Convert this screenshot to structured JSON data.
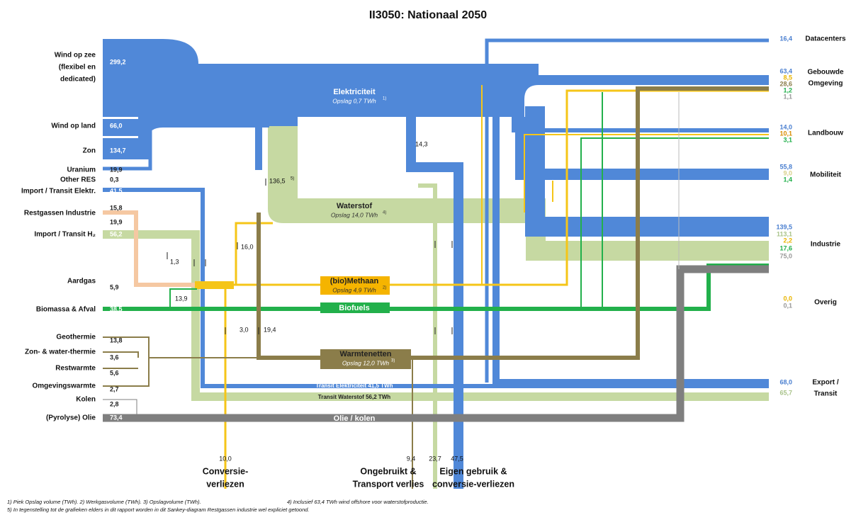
{
  "title": "II3050: Nationaal 2050",
  "sources": [
    {
      "label": [
        "Wind op zee",
        "(flexibel en",
        "dedicated)"
      ],
      "values": [
        "299,2"
      ]
    },
    {
      "label": [
        "Wind op land"
      ],
      "values": [
        "66,0"
      ]
    },
    {
      "label": [
        "Zon"
      ],
      "values": [
        "134,7"
      ]
    },
    {
      "label": [
        "Uranium"
      ],
      "values": [
        "19,9"
      ]
    },
    {
      "label": [
        "Other RES"
      ],
      "values": [
        "0,3"
      ]
    },
    {
      "label": [
        "Import / Transit Elektr."
      ],
      "values": [
        "41,5"
      ]
    },
    {
      "label": [
        "Restgassen Industrie"
      ],
      "values": [
        "15,8",
        "19,9"
      ]
    },
    {
      "label": [
        "Import / Transit H₂"
      ],
      "values": [
        "56,2"
      ]
    },
    {
      "label": [
        "Aardgas"
      ],
      "values": [
        "5,9"
      ]
    },
    {
      "label": [
        "Biomassa & Afval"
      ],
      "values": [
        "38,5"
      ]
    },
    {
      "label": [
        "Geothermie"
      ],
      "values": [
        "13,8"
      ]
    },
    {
      "label": [
        "Zon- & water-thermie"
      ],
      "values": [
        "3,6"
      ]
    },
    {
      "label": [
        "Restwarmte"
      ],
      "values": [
        "5,6"
      ]
    },
    {
      "label": [
        "Omgevingswarmte"
      ],
      "values": [
        "2,7"
      ]
    },
    {
      "label": [
        "Kolen"
      ],
      "values": [
        "2,8"
      ]
    },
    {
      "label": [
        "(Pyrolyse) Olie"
      ],
      "values": [
        "73,4"
      ]
    }
  ],
  "carriers": [
    {
      "name": "Elektriciteit",
      "storage": "Opslag 0,7 TWh",
      "note": "1)"
    },
    {
      "name": "Waterstof",
      "storage": "Opslag 14,0 TWh",
      "note": "4)"
    },
    {
      "name": "(bio)Methaan",
      "storage": "Opslag 4,9 TWh",
      "note": "2)"
    },
    {
      "name": "Biofuels"
    },
    {
      "name": "Warmtenetten",
      "storage": "Opslag 12,0 TWh",
      "note": "3)"
    },
    {
      "name": "Transit Elektriciteit 41,5 TWh"
    },
    {
      "name": "Transit Waterstof 56,2 TWh"
    },
    {
      "name": "Olie / kolen"
    }
  ],
  "flow_labels": [
    "14,3",
    "136,5",
    "5)",
    "16,0",
    "1,3",
    "13,9",
    "3,0",
    "19,4"
  ],
  "destinations": [
    {
      "label": [
        "Datacenters"
      ],
      "values": [
        "16,4"
      ]
    },
    {
      "label": [
        "Gebouwde",
        "Omgeving"
      ],
      "values": [
        "63,4",
        "8,5",
        "28,6",
        "1,2",
        "1,1"
      ]
    },
    {
      "label": [
        "Landbouw"
      ],
      "values": [
        "14,0",
        "10,1",
        "3,1"
      ]
    },
    {
      "label": [
        "Mobiliteit"
      ],
      "values": [
        "55,8",
        "9,0",
        "1,4"
      ]
    },
    {
      "label": [
        "Industrie"
      ],
      "values": [
        "139,5",
        "113,1",
        "2,2",
        "17,6",
        "75,0"
      ]
    },
    {
      "label": [
        "Overig"
      ],
      "values": [
        "0,0",
        "0,1"
      ]
    },
    {
      "label": [
        "Export /",
        "Transit"
      ],
      "values": [
        "68,0",
        "65,7"
      ]
    }
  ],
  "losses": [
    {
      "values": [
        "10,0"
      ],
      "label": [
        "Conversie-",
        "verliezen"
      ]
    },
    {
      "values": [
        "9,4"
      ],
      "label": [
        "Ongebruikt &",
        "Transport verlies"
      ]
    },
    {
      "values": [
        "23,7",
        "47,5"
      ],
      "label": [
        "Eigen gebruik &",
        "conversie-verliezen"
      ]
    }
  ],
  "footnotes": [
    "1) Piek Opslag volume (TWh).   2) Werkgasvolume (TWh).   3) Opslagvolume (TWh).",
    "4) Inclusief 63,4 TWh wind offshore voor waterstofproductie.",
    "5) In tegenstelling tot de grafieken elders in dit rapport worden in dit Sankey-diagram Restgassen industrie wel expliciet getoond."
  ]
}
